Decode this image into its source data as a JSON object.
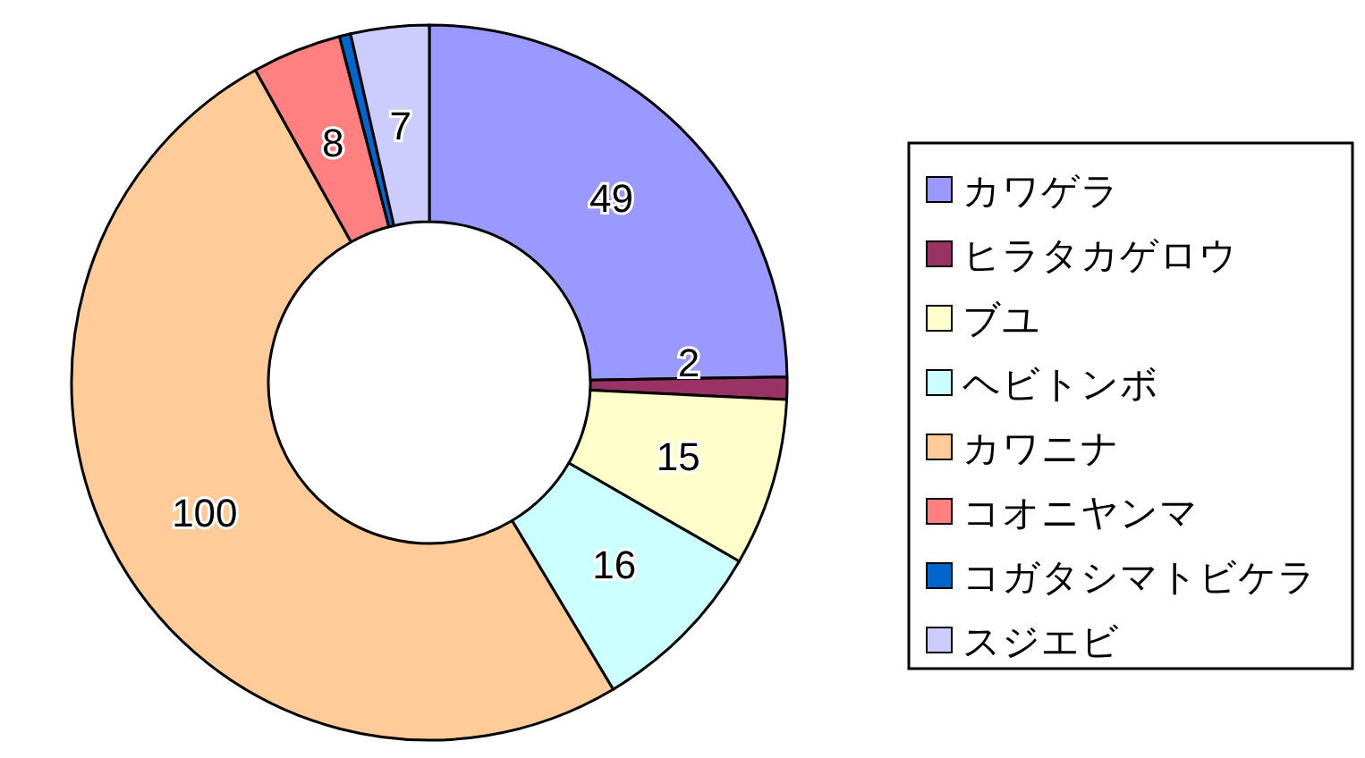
{
  "chart_data": {
    "type": "donut",
    "categories": [
      "カワゲラ",
      "ヒラタカゲロウ",
      "ブユ",
      "ヘビトンボ",
      "カワニナ",
      "コオニヤンマ",
      "コガタシマトビケラ",
      "スジエビ"
    ],
    "values": [
      49,
      2,
      15,
      16,
      100,
      8,
      1,
      7
    ],
    "value_labels": [
      "49",
      "2",
      "15",
      "16",
      "100",
      "8",
      null,
      "7"
    ],
    "colors": [
      "#9999ff",
      "#993366",
      "#ffffcc",
      "#ccffff",
      "#ffcc99",
      "#ff8080",
      "#0066cc",
      "#ccccff"
    ],
    "legend": "right"
  }
}
